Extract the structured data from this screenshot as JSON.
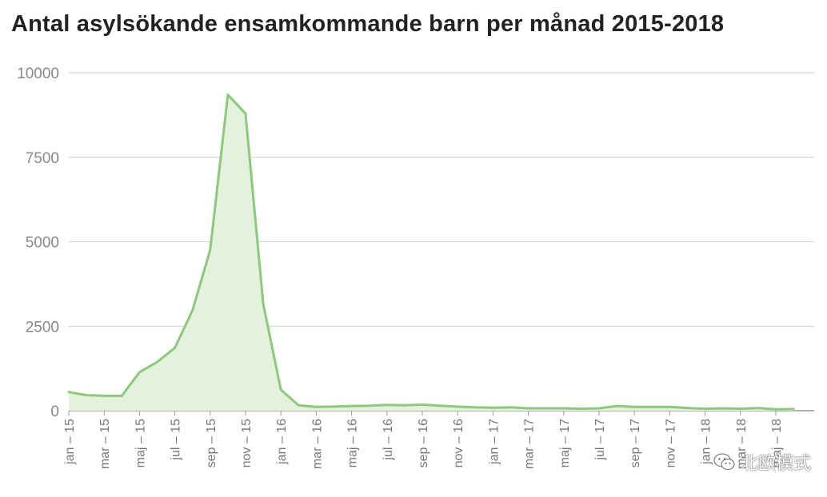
{
  "chart_data": {
    "type": "area",
    "title": "Antal asylsökande ensamkommande barn per månad 2015-2018",
    "xlabel": "",
    "ylabel": "",
    "ylim": [
      0,
      10000
    ],
    "yticks": [
      "0",
      "2500",
      "5000",
      "7500",
      "10000"
    ],
    "grid": true,
    "legend": "none",
    "color": "#8cc97a",
    "fill_color": "#e4f1dd",
    "x": [
      "jan – 15",
      "feb – 15",
      "mar – 15",
      "apr – 15",
      "maj – 15",
      "jun – 15",
      "jul – 15",
      "aug – 15",
      "sep – 15",
      "okt – 15",
      "nov – 15",
      "dec – 15",
      "jan – 16",
      "feb – 16",
      "mar – 16",
      "apr – 16",
      "maj – 16",
      "jun – 16",
      "jul – 16",
      "aug – 16",
      "sep – 16",
      "okt – 16",
      "nov – 16",
      "dec – 16",
      "jan – 17",
      "feb – 17",
      "mar – 17",
      "apr – 17",
      "maj – 17",
      "jun – 17",
      "jul – 17",
      "aug – 17",
      "sep – 17",
      "okt – 17",
      "nov – 17",
      "dec – 17",
      "jan – 18",
      "feb – 18",
      "mar – 18",
      "apr – 18",
      "maj – 18",
      "jun – 18"
    ],
    "x_tick_labels": [
      "jan – 15",
      "mar – 15",
      "maj – 15",
      "jul – 15",
      "sep – 15",
      "nov – 15",
      "jan – 16",
      "mar – 16",
      "maj – 16",
      "jul – 16",
      "sep – 16",
      "nov – 16",
      "jan – 17",
      "mar – 17",
      "maj – 17",
      "jul – 17",
      "sep – 17",
      "nov – 17",
      "jan – 18",
      "mar – 18",
      "maj – 18"
    ],
    "values": [
      550,
      460,
      440,
      440,
      1140,
      1440,
      1860,
      2970,
      4760,
      9350,
      8790,
      3160,
      620,
      160,
      110,
      120,
      140,
      150,
      170,
      160,
      180,
      150,
      120,
      100,
      90,
      100,
      70,
      70,
      70,
      60,
      70,
      140,
      110,
      110,
      110,
      80,
      60,
      70,
      60,
      80,
      40,
      50
    ]
  },
  "watermark": {
    "icon": "wechat-icon",
    "text": "北欧模式"
  }
}
